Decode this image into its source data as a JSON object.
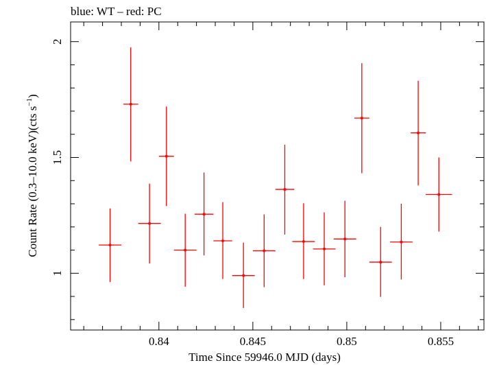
{
  "chart_data": {
    "type": "scatter",
    "title": "blue: WT – red: PC",
    "xlabel": "Time Since 59946.0 MJD (days)",
    "ylabel_main": "Count Rate (0.3–10.0 keV)(cts s",
    "ylabel_sup": "−1",
    "ylabel_end": ")",
    "xlim": [
      0.8353,
      0.8573
    ],
    "ylim": [
      0.755,
      2.085
    ],
    "xticks": [
      0.84,
      0.845,
      0.85,
      0.855
    ],
    "xtick_labels": [
      "0.84",
      "0.845",
      "0.85",
      "0.855"
    ],
    "yticks": [
      1,
      1.5,
      2
    ],
    "ytick_labels": [
      "1",
      "1.5",
      "2"
    ],
    "series": [
      {
        "color": "#ff0000",
        "points": [
          {
            "x": 0.8374,
            "xerr": 0.0006,
            "y": 1.122,
            "yerr_lo": 0.16,
            "yerr_hi": 0.158
          },
          {
            "x": 0.8385,
            "xerr": 0.0004,
            "y": 1.73,
            "yerr_lo": 0.247,
            "yerr_hi": 0.245
          },
          {
            "x": 0.8395,
            "xerr": 0.0006,
            "y": 1.215,
            "yerr_lo": 0.173,
            "yerr_hi": 0.172
          },
          {
            "x": 0.8404,
            "xerr": 0.0004,
            "y": 1.505,
            "yerr_lo": 0.215,
            "yerr_hi": 0.215
          },
          {
            "x": 0.8414,
            "xerr": 0.0006,
            "y": 1.1,
            "yerr_lo": 0.158,
            "yerr_hi": 0.157
          },
          {
            "x": 0.8424,
            "xerr": 0.0005,
            "y": 1.255,
            "yerr_lo": 0.178,
            "yerr_hi": 0.18
          },
          {
            "x": 0.8434,
            "xerr": 0.0005,
            "y": 1.14,
            "yerr_lo": 0.165,
            "yerr_hi": 0.167
          },
          {
            "x": 0.8445,
            "xerr": 0.0006,
            "y": 0.99,
            "yerr_lo": 0.14,
            "yerr_hi": 0.142
          },
          {
            "x": 0.8456,
            "xerr": 0.0006,
            "y": 1.097,
            "yerr_lo": 0.157,
            "yerr_hi": 0.157
          },
          {
            "x": 0.8467,
            "xerr": 0.0005,
            "y": 1.362,
            "yerr_lo": 0.195,
            "yerr_hi": 0.193
          },
          {
            "x": 0.8477,
            "xerr": 0.0006,
            "y": 1.137,
            "yerr_lo": 0.162,
            "yerr_hi": 0.165
          },
          {
            "x": 0.8488,
            "xerr": 0.0006,
            "y": 1.105,
            "yerr_lo": 0.157,
            "yerr_hi": 0.158
          },
          {
            "x": 0.8499,
            "xerr": 0.0006,
            "y": 1.148,
            "yerr_lo": 0.165,
            "yerr_hi": 0.165
          },
          {
            "x": 0.8508,
            "xerr": 0.0004,
            "y": 1.67,
            "yerr_lo": 0.238,
            "yerr_hi": 0.237
          },
          {
            "x": 0.8518,
            "xerr": 0.0006,
            "y": 1.048,
            "yerr_lo": 0.15,
            "yerr_hi": 0.152
          },
          {
            "x": 0.8529,
            "xerr": 0.0006,
            "y": 1.135,
            "yerr_lo": 0.162,
            "yerr_hi": 0.165
          },
          {
            "x": 0.8538,
            "xerr": 0.0004,
            "y": 1.606,
            "yerr_lo": 0.227,
            "yerr_hi": 0.225
          },
          {
            "x": 0.8549,
            "xerr": 0.0007,
            "y": 1.34,
            "yerr_lo": 0.16,
            "yerr_hi": 0.16
          }
        ]
      }
    ]
  }
}
